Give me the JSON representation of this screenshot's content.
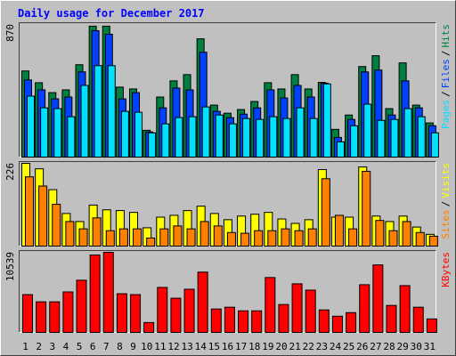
{
  "title": "Daily usage for December 2017",
  "chart_data": [
    {
      "type": "bar",
      "ylim": [
        0,
        870
      ],
      "yticks": [
        870
      ],
      "separator": "/",
      "series": [
        {
          "name": "Pages",
          "color": "#00e0ff",
          "values": [
            400,
            323,
            318,
            265,
            470,
            600,
            600,
            300,
            294,
            159,
            218,
            259,
            265,
            329,
            276,
            218,
            253,
            247,
            265,
            253,
            323,
            253,
            480,
            100,
            206,
            347,
            241,
            247,
            318,
            265,
            159
          ]
        },
        {
          "name": "Files",
          "color": "#0040ff",
          "values": [
            506,
            441,
            382,
            394,
            559,
            829,
            806,
            382,
            423,
            165,
            323,
            453,
            441,
            688,
            300,
            259,
            282,
            323,
            441,
            388,
            470,
            394,
            485,
            129,
            247,
            559,
            571,
            276,
            500,
            323,
            206
          ]
        },
        {
          "name": "Hits",
          "color": "#008040",
          "values": [
            565,
            488,
            423,
            441,
            606,
            859,
            859,
            459,
            447,
            176,
            394,
            500,
            541,
            776,
            341,
            288,
            312,
            365,
            488,
            447,
            541,
            447,
            490,
            182,
            276,
            594,
            665,
            318,
            618,
            341,
            224
          ]
        }
      ]
    },
    {
      "type": "bar",
      "ylim": [
        0,
        226
      ],
      "yticks": [
        226
      ],
      "separator": "/",
      "series": [
        {
          "name": "Sites",
          "color": "#ff8000",
          "values": [
            189,
            164,
            114,
            67,
            47,
            77,
            42,
            47,
            47,
            22,
            47,
            55,
            47,
            67,
            55,
            37,
            35,
            42,
            42,
            47,
            42,
            47,
            184,
            84,
            47,
            204,
            70,
            42,
            67,
            37,
            27
          ]
        },
        {
          "name": "Visits",
          "color": "#ffff00",
          "values": [
            226,
            211,
            154,
            89,
            67,
            112,
            99,
            97,
            92,
            50,
            79,
            84,
            97,
            109,
            89,
            72,
            82,
            87,
            92,
            74,
            62,
            72,
            209,
            79,
            79,
            216,
            82,
            67,
            82,
            52,
            32
          ]
        }
      ]
    },
    {
      "type": "bar",
      "ylim": [
        0,
        10539
      ],
      "yticks": [
        10539
      ],
      "categories": [
        "1",
        "2",
        "3",
        "4",
        "5",
        "6",
        "7",
        "8",
        "9",
        "10",
        "11",
        "12",
        "13",
        "14",
        "15",
        "16",
        "17",
        "18",
        "19",
        "20",
        "21",
        "22",
        "23",
        "24",
        "25",
        "26",
        "27",
        "28",
        "29",
        "30",
        "31"
      ],
      "category_colors": [
        "#000000",
        "#008040",
        "#008040",
        "#000000",
        "#000000",
        "#000000",
        "#000000",
        "#000000",
        "#008040",
        "#008040",
        "#000000",
        "#000000",
        "#000000",
        "#000000",
        "#000000",
        "#008040",
        "#008040",
        "#000000",
        "#000000",
        "#000000",
        "#000000",
        "#000000",
        "#008040",
        "#008040",
        "#000000",
        "#000000",
        "#000000",
        "#000000",
        "#000000",
        "#008040",
        "#008040"
      ],
      "series": [
        {
          "name": "KBytes",
          "color": "#ff0000",
          "values": [
            4973,
            4026,
            4026,
            5328,
            6868,
            10184,
            10539,
            5091,
            4973,
            1302,
            5920,
            4499,
            5683,
            7934,
            3079,
            3315,
            2842,
            2842,
            7223,
            3671,
            6394,
            5565,
            2960,
            2131,
            2605,
            6276,
            8881,
            3552,
            6157,
            3315,
            1776
          ]
        }
      ]
    }
  ]
}
